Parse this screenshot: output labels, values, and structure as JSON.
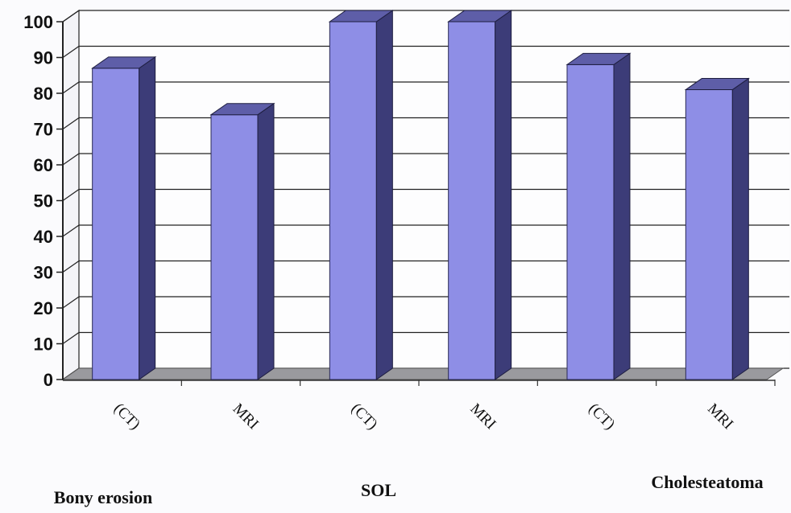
{
  "chart_data": {
    "type": "bar",
    "bars": [
      {
        "label": "(CT)",
        "value": 87
      },
      {
        "label": "MRI",
        "value": 74
      },
      {
        "label": "(CT)",
        "value": 100
      },
      {
        "label": "MRI",
        "value": 100
      },
      {
        "label": "(CT)",
        "value": 88
      },
      {
        "label": "MRI",
        "value": 81
      }
    ],
    "groups": [
      "Bony erosion",
      "SOL",
      "Cholesteatoma"
    ],
    "yticks": [
      "0",
      "10",
      "20",
      "30",
      "40",
      "50",
      "60",
      "70",
      "80",
      "90",
      "100"
    ],
    "ylim": [
      0,
      100
    ],
    "grid": true,
    "three_d": true,
    "colors": {
      "bar_front": "#8e8ee6",
      "bar_side": "#3c3c78",
      "bar_top": "#5e5ea8",
      "floor": "#9a9a9e",
      "grid": "#222222"
    }
  }
}
